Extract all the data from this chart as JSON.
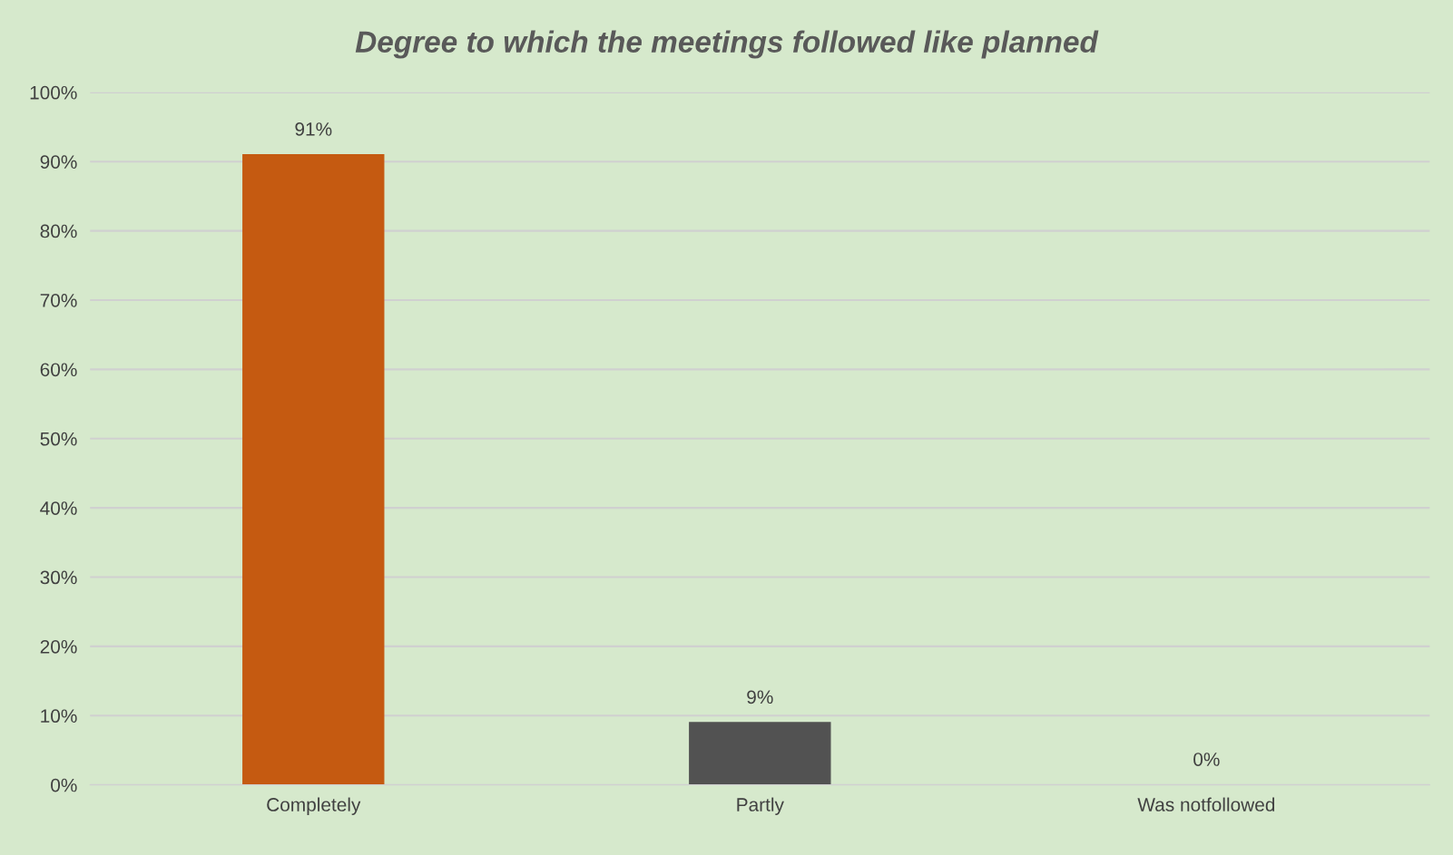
{
  "chart_data": {
    "type": "bar",
    "title": "Degree to which the meetings followed like planned",
    "categories": [
      "Completely",
      "Partly",
      "Was notfollowed"
    ],
    "values": [
      91,
      9,
      0
    ],
    "colors": [
      "#c55a11",
      "#525252",
      "#a5a5a5"
    ],
    "value_labels": [
      "91%",
      "9%",
      "0%"
    ],
    "ylim": [
      0,
      100
    ],
    "yticks": [
      {
        "value": 0,
        "label": "0%"
      },
      {
        "value": 10,
        "label": "10%"
      },
      {
        "value": 20,
        "label": "20%"
      },
      {
        "value": 30,
        "label": "30%"
      },
      {
        "value": 40,
        "label": "40%"
      },
      {
        "value": 50,
        "label": "50%"
      },
      {
        "value": 60,
        "label": "60%"
      },
      {
        "value": 70,
        "label": "70%"
      },
      {
        "value": 80,
        "label": "80%"
      },
      {
        "value": 90,
        "label": "90%"
      },
      {
        "value": 100,
        "label": "100%"
      }
    ],
    "grid": "y"
  }
}
